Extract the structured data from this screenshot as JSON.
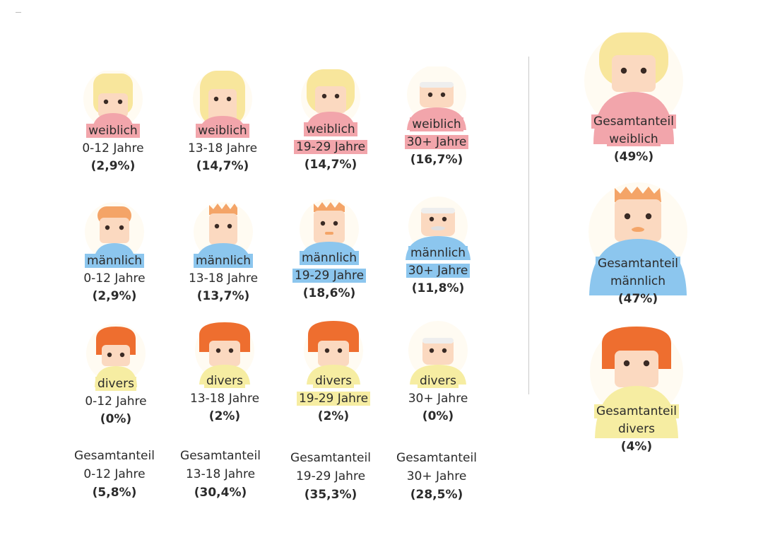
{
  "colors": {
    "skin": "#fbd9c0",
    "blond": "#f8e69c",
    "ginger": "#f4a467",
    "redhair": "#ee6e2f",
    "grey": "#e0e0e0",
    "pink": "#f2a5ab",
    "blue": "#8cc6ee",
    "yellow": "#f6eda2",
    "eye": "#3a2b25"
  },
  "grid": [
    [
      {
        "gender": "weiblich",
        "age": "0-12 Jahre",
        "pct": "(2,9%)"
      },
      {
        "gender": "weiblich",
        "age": "13-18 Jahre",
        "pct": "(14,7%)"
      },
      {
        "gender": "weiblich",
        "age": "19-29 Jahre",
        "pct": "(14,7%)"
      },
      {
        "gender": "weiblich",
        "age": "30+ Jahre",
        "pct": "(16,7%)"
      }
    ],
    [
      {
        "gender": "männlich",
        "age": "0-12 Jahre",
        "pct": "(2,9%)"
      },
      {
        "gender": "männlich",
        "age": "13-18 Jahre",
        "pct": "(13,7%)"
      },
      {
        "gender": "männlich",
        "age": "19-29 Jahre",
        "pct": "(18,6%)"
      },
      {
        "gender": "männlich",
        "age": "30+ Jahre",
        "pct": "(11,8%)"
      }
    ],
    [
      {
        "gender": "divers",
        "age": "0-12 Jahre",
        "pct": "(0%)"
      },
      {
        "gender": "divers",
        "age": "13-18 Jahre",
        "pct": "(2%)"
      },
      {
        "gender": "divers",
        "age": "19-29 Jahre",
        "pct": "(2%)"
      },
      {
        "gender": "divers",
        "age": "30+ Jahre",
        "pct": "(0%)"
      }
    ]
  ],
  "age_totals": [
    {
      "title": "Gesamtanteil",
      "age": "0-12 Jahre",
      "pct": "(5,8%)"
    },
    {
      "title": "Gesamtanteil",
      "age": "13-18 Jahre",
      "pct": "(30,4%)"
    },
    {
      "title": "Gesamtanteil",
      "age": "19-29 Jahre",
      "pct": "(35,3%)"
    },
    {
      "title": "Gesamtanteil",
      "age": "30+ Jahre",
      "pct": "(28,5%)"
    }
  ],
  "gender_totals": [
    {
      "title": "Gesamtanteil",
      "gender": "weiblich",
      "pct": "(49%)"
    },
    {
      "title": "Gesamtanteil",
      "gender": "männlich",
      "pct": "(47%)"
    },
    {
      "title": "Gesamtanteil",
      "gender": "divers",
      "pct": "(4%)"
    }
  ]
}
